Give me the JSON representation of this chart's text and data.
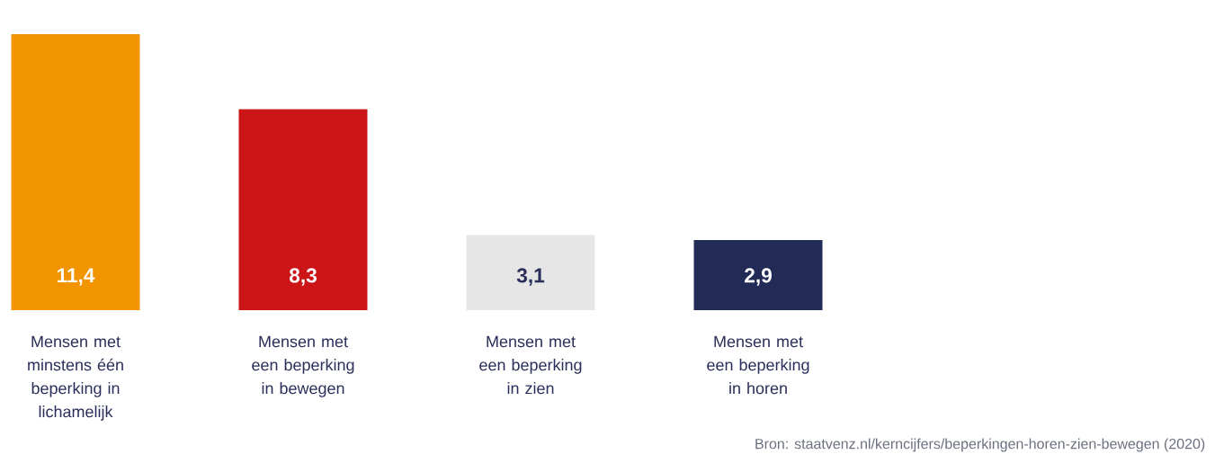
{
  "chart_data": {
    "type": "bar",
    "categories": [
      "Mensen met minstens één beperking in lichamelijk",
      "Mensen met een beperking in bewegen",
      "Mensen met een beperking in zien",
      "Mensen met een beperking in horen"
    ],
    "values": [
      11.4,
      8.3,
      3.1,
      2.9
    ],
    "colors": [
      "#f29400",
      "#cc1517",
      "#e6e6e6",
      "#222a56"
    ],
    "value_labels": [
      "11,4",
      "8,3",
      "3,1",
      "2,9"
    ],
    "annotations": [
      "Bron: staatvenz.nl/kerncijfers/beperkingen-horen-zien-bewegen (2020)"
    ]
  }
}
